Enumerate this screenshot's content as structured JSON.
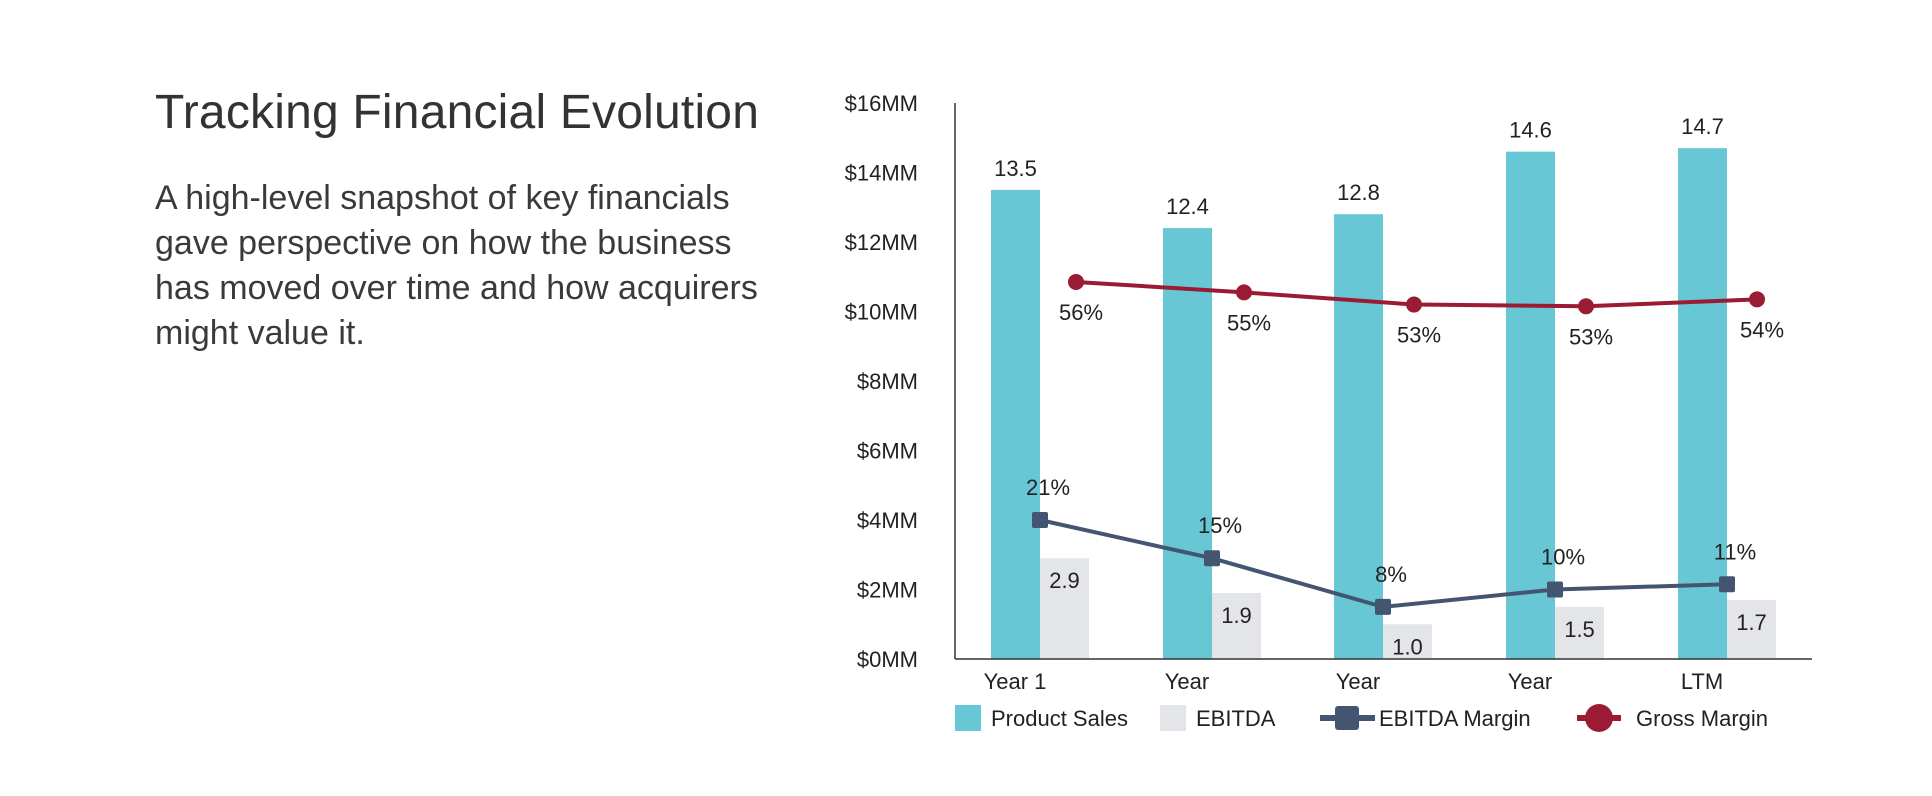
{
  "heading": "Tracking Financial Evolution",
  "description": "A high-level snapshot of key financials gave perspective on how the business has moved over time and how acquirers might value it.",
  "colors": {
    "product_sales": "#67c7d4",
    "ebitda": "#e4e5e8",
    "ebitda_margin": "#445572",
    "gross_margin": "#9b1b34",
    "axis": "#333333"
  },
  "chart_data": {
    "type": "bar",
    "categories": [
      "Year 1",
      "Year",
      "Year",
      "Year",
      "LTM"
    ],
    "ylim": [
      0,
      16
    ],
    "yticks": [
      0,
      2,
      4,
      6,
      8,
      10,
      12,
      14,
      16
    ],
    "ytick_labels": [
      "$0MM",
      "$2MM",
      "$4MM",
      "$6MM",
      "$8MM",
      "$10MM",
      "$12MM",
      "$14MM",
      "$16MM"
    ],
    "series": [
      {
        "name": "Product Sales",
        "kind": "bar",
        "values": [
          13.5,
          12.4,
          12.8,
          14.6,
          14.7
        ],
        "labels": [
          "13.5",
          "12.4",
          "12.8",
          "14.6",
          "14.7"
        ]
      },
      {
        "name": "EBITDA",
        "kind": "bar",
        "values": [
          2.9,
          1.9,
          1.0,
          1.5,
          1.7
        ],
        "labels": [
          "2.9",
          "1.9",
          "1.0",
          "1.5",
          "1.7"
        ]
      },
      {
        "name": "EBITDA Margin",
        "kind": "line",
        "marker": "square",
        "values": [
          21,
          15,
          8,
          10,
          11
        ],
        "plot_values": [
          4.0,
          2.9,
          1.5,
          2.0,
          2.15
        ],
        "labels": [
          "21%",
          "15%",
          "8%",
          "10%",
          "11%"
        ]
      },
      {
        "name": "Gross Margin",
        "kind": "line",
        "marker": "circle",
        "values": [
          56,
          55,
          53,
          53,
          54
        ],
        "plot_values": [
          10.85,
          10.55,
          10.2,
          10.15,
          10.35
        ],
        "labels": [
          "56%",
          "55%",
          "53%",
          "53%",
          "54%"
        ]
      }
    ],
    "legend": [
      "Product Sales",
      "EBITDA",
      "EBITDA Margin",
      "Gross Margin"
    ],
    "legend_position": "bottom"
  }
}
